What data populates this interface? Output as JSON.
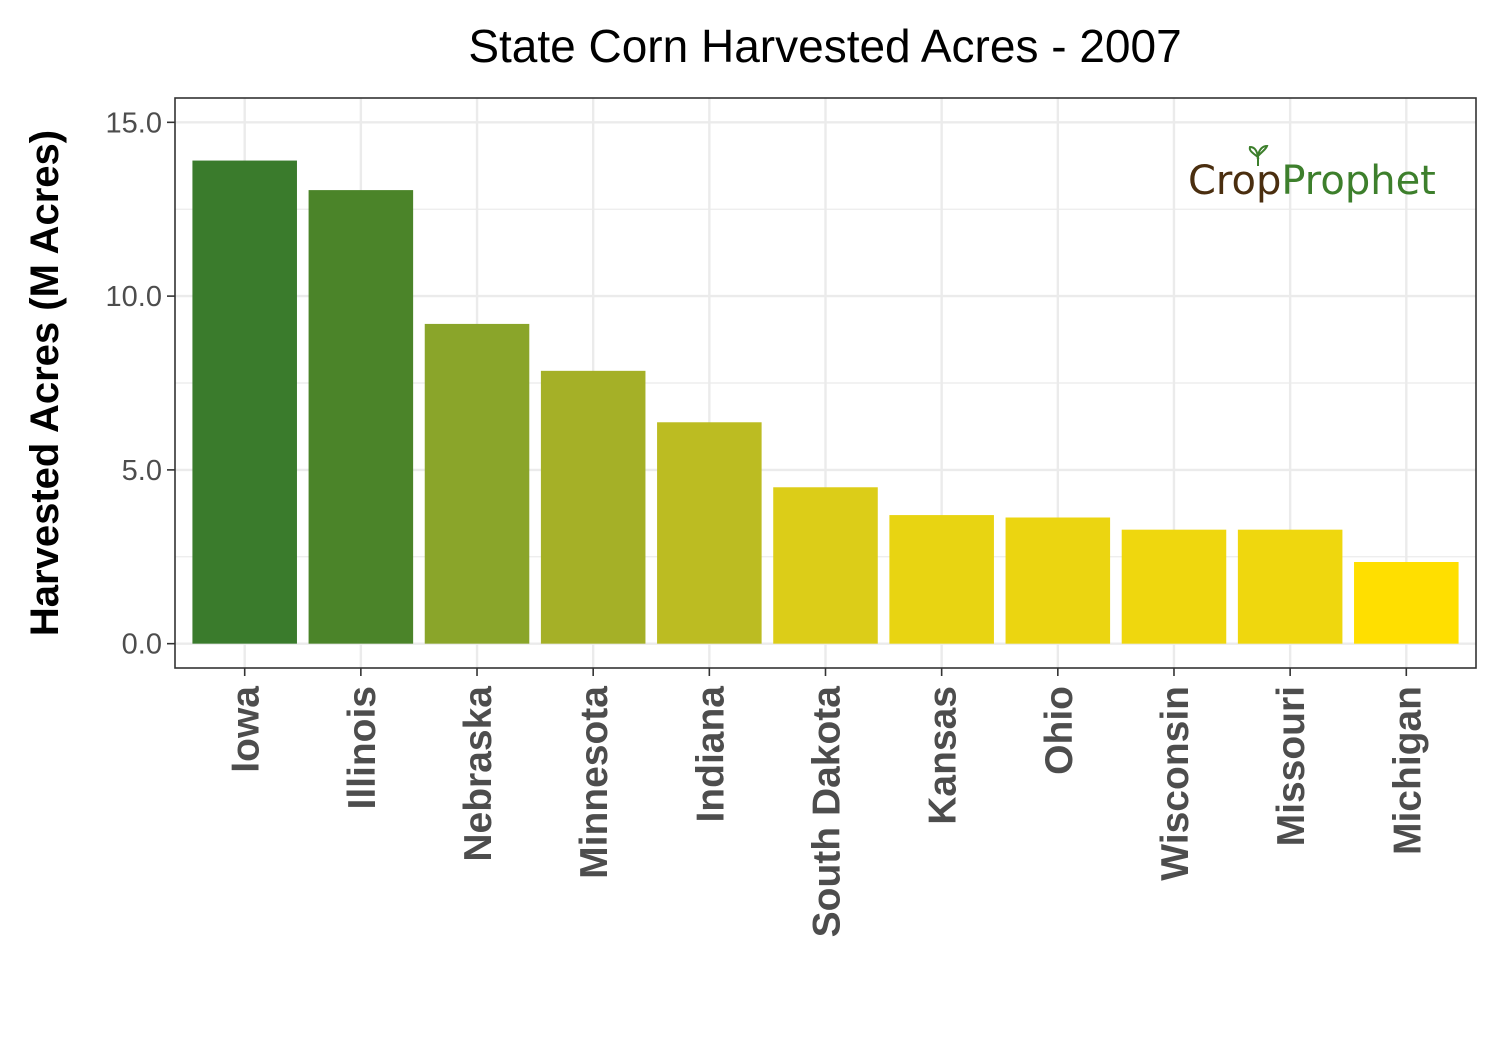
{
  "chart_data": {
    "type": "bar",
    "title": "State Corn Harvested Acres - 2007",
    "xlabel": "",
    "ylabel": "Harvested Acres (M Acres)",
    "categories": [
      "Iowa",
      "Illinois",
      "Nebraska",
      "Minnesota",
      "Indiana",
      "South Dakota",
      "Kansas",
      "Ohio",
      "Wisconsin",
      "Missouri",
      "Michigan"
    ],
    "values": [
      13.9,
      13.05,
      9.2,
      7.85,
      6.37,
      4.5,
      3.7,
      3.63,
      3.28,
      3.28,
      2.35
    ],
    "colors": [
      "#3a7b2c",
      "#4b8429",
      "#8aa52a",
      "#a5b027",
      "#bcbc22",
      "#dccd18",
      "#e8d412",
      "#ebd511",
      "#efd70e",
      "#efd70e",
      "#ffdf00"
    ],
    "ylim": [
      -0.7,
      15.7
    ],
    "yticks": [
      0,
      5,
      10,
      15
    ],
    "ytick_labels": [
      "0.0",
      "5.0",
      "10.0",
      "15.0"
    ],
    "grid": true,
    "legend": "none"
  },
  "logo": {
    "part1": "Cr",
    "part2": "o",
    "part3": "p",
    "part4": "Prophet",
    "color_dark": "#4a2e0f",
    "color_green": "#3d7f2c"
  }
}
